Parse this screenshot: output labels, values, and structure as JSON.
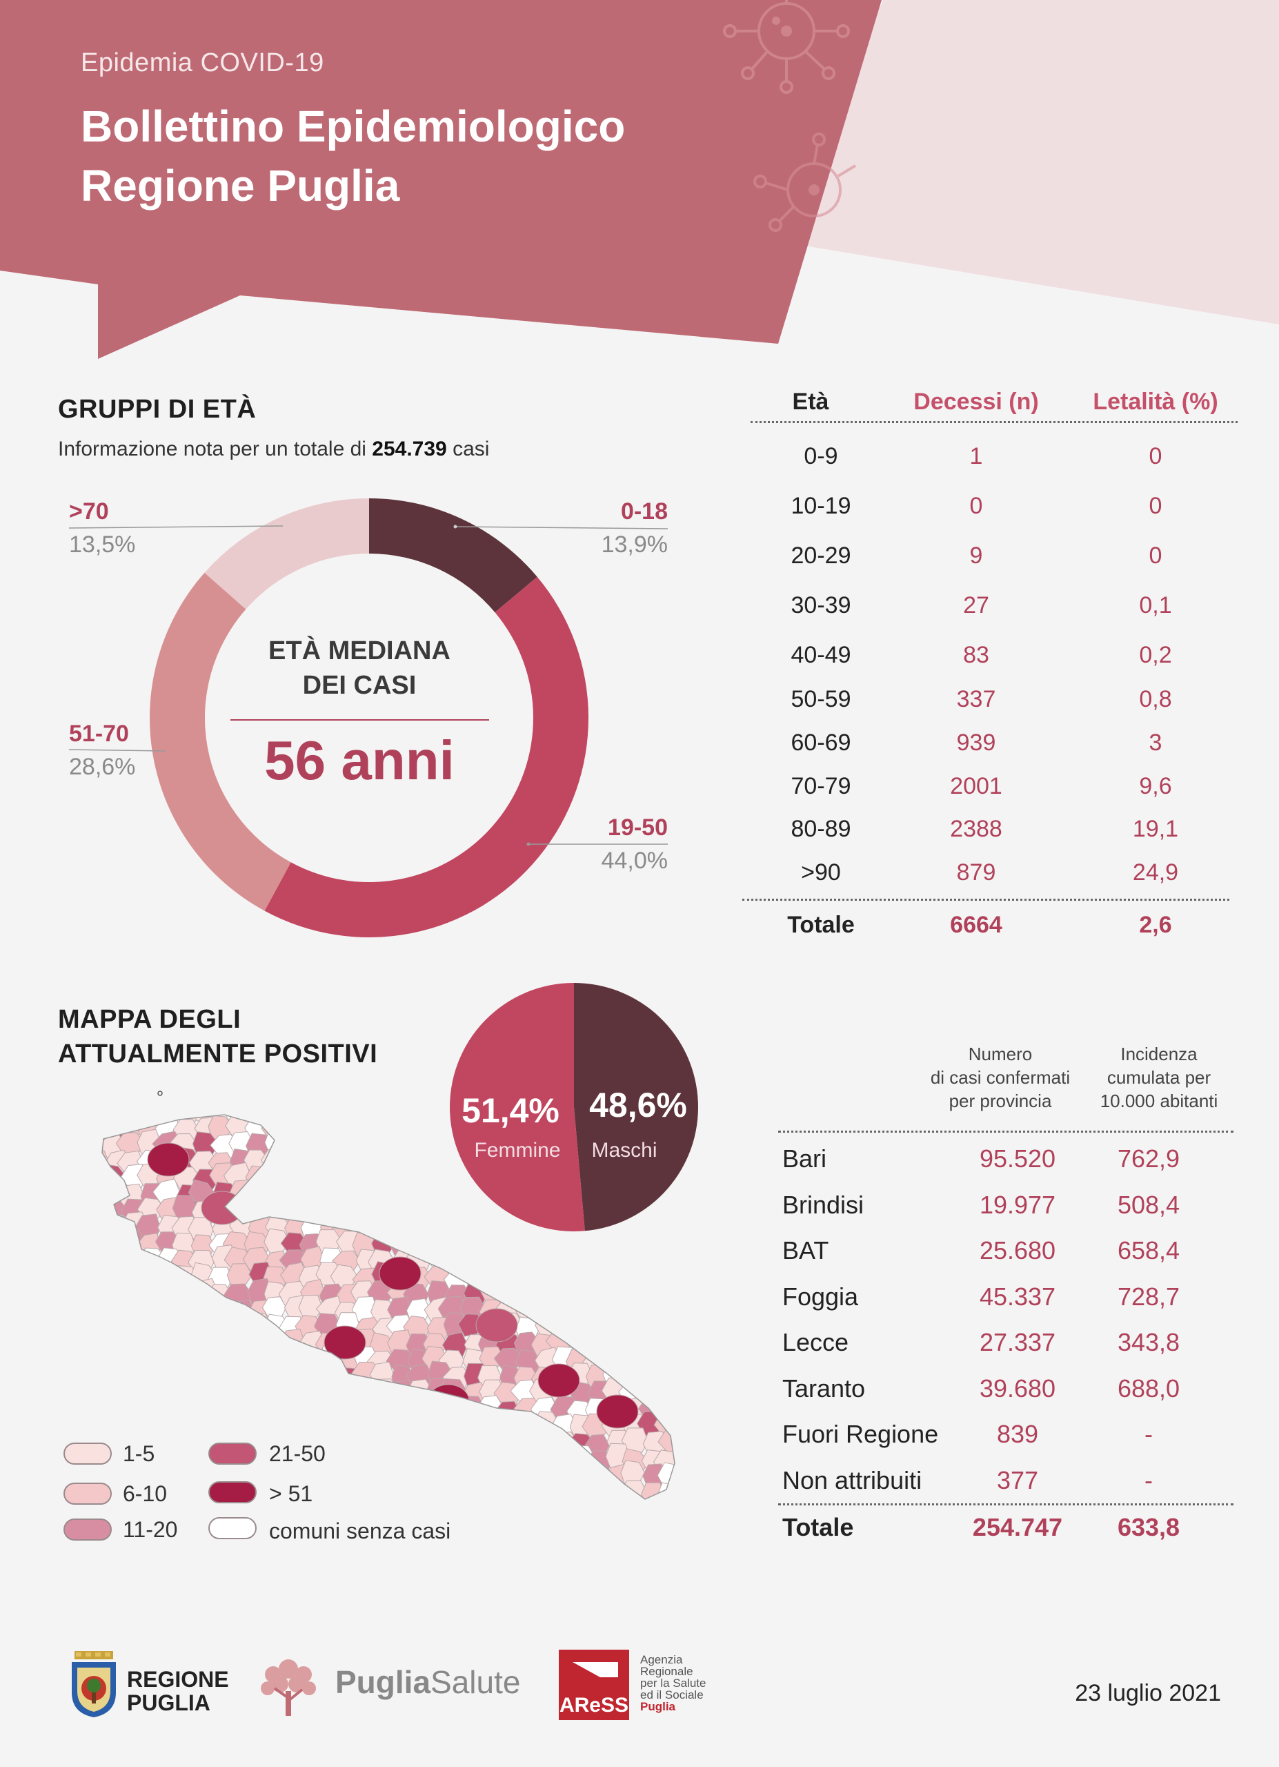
{
  "header": {
    "kicker": "Epidemia COVID-19",
    "title_line1": "Bollettino Epidemiologico",
    "title_line2": "Regione Puglia"
  },
  "colors": {
    "header_main": "#be6a74",
    "header_light": "#f0dfe0",
    "accent": "#b0415a",
    "dark": "#5d343b",
    "mid": "#c14660",
    "rose": "#d79092",
    "pale": "#eacbcd"
  },
  "age_groups": {
    "title": "GRUPPI DI ETÀ",
    "subtitle_pre": "Informazione nota per un totale di",
    "subtitle_value": "254.739",
    "subtitle_post": "casi",
    "center_line1": "ETÀ MEDIANA",
    "center_line2": "DEI CASI",
    "center_value": "56 anni"
  },
  "chart_data": [
    {
      "type": "pie",
      "title": "GRUPPI DI ETÀ",
      "subtitle": "Informazione nota per un totale di 254.739 casi",
      "categories": [
        "0-18",
        "19-50",
        "51-70",
        ">70"
      ],
      "values": [
        13.9,
        44.0,
        28.6,
        13.5
      ],
      "labels": [
        "13,9%",
        "44,0%",
        "28,6%",
        "13,5%"
      ],
      "colors": [
        "#5d343b",
        "#c14660",
        "#d79092",
        "#eacbcd"
      ],
      "center_text": "ETÀ MEDIANA DEI CASI 56 anni"
    },
    {
      "type": "pie",
      "categories": [
        "Femmine",
        "Maschi"
      ],
      "values": [
        51.4,
        48.6
      ],
      "labels": [
        "51,4%",
        "48,6%"
      ],
      "colors": [
        "#c14660",
        "#5d343b"
      ]
    },
    {
      "type": "table",
      "columns": [
        "Età",
        "Decessi (n)",
        "Letalità (%)"
      ],
      "rows": [
        [
          "0-9",
          "1",
          "0"
        ],
        [
          "10-19",
          "0",
          "0"
        ],
        [
          "20-29",
          "9",
          "0"
        ],
        [
          "30-39",
          "27",
          "0,1"
        ],
        [
          "40-49",
          "83",
          "0,2"
        ],
        [
          "50-59",
          "337",
          "0,8"
        ],
        [
          "60-69",
          "939",
          "3"
        ],
        [
          "70-79",
          "2001",
          "9,6"
        ],
        [
          "80-89",
          "2388",
          "19,1"
        ],
        [
          ">90",
          "879",
          "24,9"
        ]
      ],
      "total": [
        "Totale",
        "6664",
        "2,6"
      ]
    },
    {
      "type": "table",
      "columns": [
        "",
        "Numero di casi confermati per provincia",
        "Incidenza cumulata per 10.000 abitanti"
      ],
      "rows": [
        [
          "Bari",
          "95.520",
          "762,9"
        ],
        [
          "Brindisi",
          "19.977",
          "508,4"
        ],
        [
          "BAT",
          "25.680",
          "658,4"
        ],
        [
          "Foggia",
          "45.337",
          "728,7"
        ],
        [
          "Lecce",
          "27.337",
          "343,8"
        ],
        [
          "Taranto",
          "39.680",
          "688,0"
        ],
        [
          "Fuori Regione",
          "839",
          "-"
        ],
        [
          "Non attribuiti",
          "377",
          "-"
        ]
      ],
      "total": [
        "Totale",
        "254.747",
        "633,8"
      ]
    }
  ],
  "sex_pie": {
    "f_pct": "51,4%",
    "f_label": "Femmine",
    "m_pct": "48,6%",
    "m_label": "Maschi"
  },
  "map": {
    "title_line1": "MAPPA DEGLI",
    "title_line2": "ATTUALMENTE POSITIVI",
    "legend": [
      {
        "label": "1-5",
        "color": "#f9e1df"
      },
      {
        "label": "6-10",
        "color": "#f4c7c8"
      },
      {
        "label": "11-20",
        "color": "#d88ea2"
      },
      {
        "label": "21-50",
        "color": "#c25674"
      },
      {
        "label": "> 51",
        "color": "#a51c45"
      },
      {
        "label": "comuni senza casi",
        "color": "#ffffff"
      }
    ]
  },
  "age_table": {
    "h_age": "Età",
    "h_deaths": "Decessi (n)",
    "h_leth": "Letalità (%)",
    "rows": [
      {
        "age": "0-9",
        "deaths": "1",
        "leth": "0"
      },
      {
        "age": "10-19",
        "deaths": "0",
        "leth": "0"
      },
      {
        "age": "20-29",
        "deaths": "9",
        "leth": "0"
      },
      {
        "age": "30-39",
        "deaths": "27",
        "leth": "0,1"
      },
      {
        "age": "40-49",
        "deaths": "83",
        "leth": "0,2"
      },
      {
        "age": "50-59",
        "deaths": "337",
        "leth": "0,8"
      },
      {
        "age": "60-69",
        "deaths": "939",
        "leth": "3"
      },
      {
        "age": "70-79",
        "deaths": "2001",
        "leth": "9,6"
      },
      {
        "age": "80-89",
        "deaths": "2388",
        "leth": "19,1"
      },
      {
        "age": ">90",
        "deaths": "879",
        "leth": "24,9"
      }
    ],
    "total": {
      "age": "Totale",
      "deaths": "6664",
      "leth": "2,6"
    }
  },
  "prov_table": {
    "h_cases_1": "Numero",
    "h_cases_2": "di casi confermati",
    "h_cases_3": "per provincia",
    "h_inc_1": "Incidenza",
    "h_inc_2": "cumulata per",
    "h_inc_3": "10.000 abitanti",
    "rows": [
      {
        "name": "Bari",
        "cases": "95.520",
        "inc": "762,9"
      },
      {
        "name": "Brindisi",
        "cases": "19.977",
        "inc": "508,4"
      },
      {
        "name": "BAT",
        "cases": "25.680",
        "inc": "658,4"
      },
      {
        "name": "Foggia",
        "cases": "45.337",
        "inc": "728,7"
      },
      {
        "name": "Lecce",
        "cases": "27.337",
        "inc": "343,8"
      },
      {
        "name": "Taranto",
        "cases": "39.680",
        "inc": "688,0"
      },
      {
        "name": "Fuori Regione",
        "cases": "839",
        "inc": "-"
      },
      {
        "name": "Non attribuiti",
        "cases": "377",
        "inc": "-"
      }
    ],
    "total": {
      "name": "Totale",
      "cases": "254.747",
      "inc": "633,8"
    }
  },
  "footer": {
    "rp_line1": "REGIONE",
    "rp_line2": "PUGLIA",
    "ps_bold": "Puglia",
    "ps_light": "Salute",
    "aress_logo": "AReSS",
    "agency_1": "Agenzia",
    "agency_2": "Regionale",
    "agency_3": "per la Salute",
    "agency_4": "ed il Sociale",
    "agency_5": "Puglia",
    "date": "23 luglio 2021"
  }
}
